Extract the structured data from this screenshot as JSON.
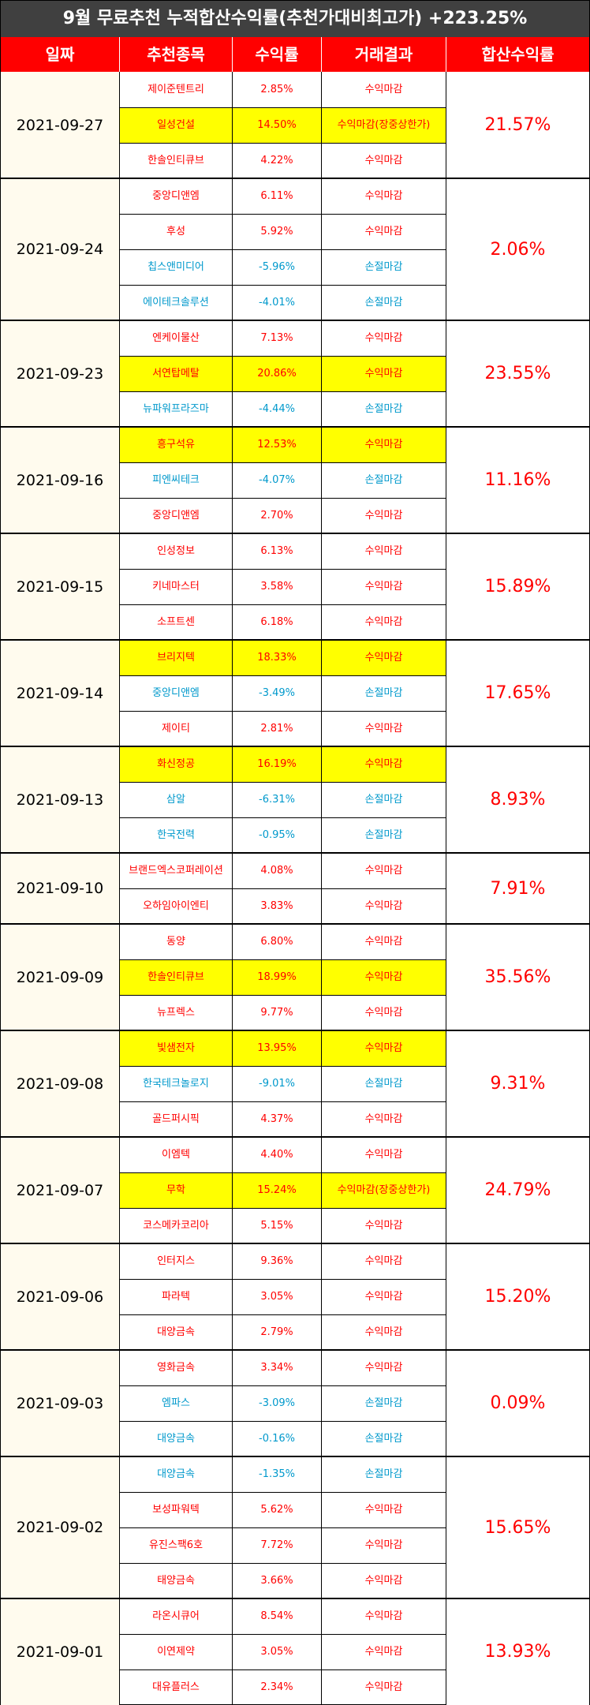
{
  "title": "9월 무료추천 누적합산수익률(추천가대비최고가) +223.25%",
  "headers": [
    "일짜",
    "추천종목",
    "수익률",
    "거래결과",
    "합산수익률"
  ],
  "colors": {
    "title_bg": "#404040",
    "header_bg": "#ff0000",
    "date_bg": "#fffbee",
    "highlight": "#ffff00",
    "gain": "#ff0000",
    "loss": "#0099cc"
  },
  "groups": [
    {
      "date": "2021-09-27",
      "total": "21.57%",
      "rows": [
        {
          "stock": "제이준텐트리",
          "return": "2.85%",
          "result": "수익마감",
          "highlight": false
        },
        {
          "stock": "일성건설",
          "return": "14.50%",
          "result": "수익마감(장중상한가)",
          "highlight": true
        },
        {
          "stock": "한솔인티큐브",
          "return": "4.22%",
          "result": "수익마감",
          "highlight": false
        }
      ]
    },
    {
      "date": "2021-09-24",
      "total": "2.06%",
      "rows": [
        {
          "stock": "중앙디앤엠",
          "return": "6.11%",
          "result": "수익마감",
          "highlight": false
        },
        {
          "stock": "후성",
          "return": "5.92%",
          "result": "수익마감",
          "highlight": false
        },
        {
          "stock": "칩스앤미디어",
          "return": "-5.96%",
          "result": "손절마감",
          "highlight": false
        },
        {
          "stock": "에이테크솔루션",
          "return": "-4.01%",
          "result": "손절마감",
          "highlight": false
        }
      ]
    },
    {
      "date": "2021-09-23",
      "total": "23.55%",
      "rows": [
        {
          "stock": "엔케이물산",
          "return": "7.13%",
          "result": "수익마감",
          "highlight": false
        },
        {
          "stock": "서연탑메탈",
          "return": "20.86%",
          "result": "수익마감",
          "highlight": true
        },
        {
          "stock": "뉴파워프라즈마",
          "return": "-4.44%",
          "result": "손절마감",
          "highlight": false
        }
      ]
    },
    {
      "date": "2021-09-16",
      "total": "11.16%",
      "rows": [
        {
          "stock": "흥구석유",
          "return": "12.53%",
          "result": "수익마감",
          "highlight": true
        },
        {
          "stock": "피엔씨테크",
          "return": "-4.07%",
          "result": "손절마감",
          "highlight": false
        },
        {
          "stock": "중앙디앤엠",
          "return": "2.70%",
          "result": "수익마감",
          "highlight": false
        }
      ]
    },
    {
      "date": "2021-09-15",
      "total": "15.89%",
      "rows": [
        {
          "stock": "인성정보",
          "return": "6.13%",
          "result": "수익마감",
          "highlight": false
        },
        {
          "stock": "키네마스터",
          "return": "3.58%",
          "result": "수익마감",
          "highlight": false
        },
        {
          "stock": "소프트센",
          "return": "6.18%",
          "result": "수익마감",
          "highlight": false
        }
      ]
    },
    {
      "date": "2021-09-14",
      "total": "17.65%",
      "rows": [
        {
          "stock": "브리지텍",
          "return": "18.33%",
          "result": "수익마감",
          "highlight": true
        },
        {
          "stock": "중앙디앤엠",
          "return": "-3.49%",
          "result": "손절마감",
          "highlight": false
        },
        {
          "stock": "제이티",
          "return": "2.81%",
          "result": "수익마감",
          "highlight": false
        }
      ]
    },
    {
      "date": "2021-09-13",
      "total": "8.93%",
      "rows": [
        {
          "stock": "화신정공",
          "return": "16.19%",
          "result": "수익마감",
          "highlight": true
        },
        {
          "stock": "삼알",
          "return": "-6.31%",
          "result": "손절마감",
          "highlight": false
        },
        {
          "stock": "한국전력",
          "return": "-0.95%",
          "result": "손절마감",
          "highlight": false
        }
      ]
    },
    {
      "date": "2021-09-10",
      "total": "7.91%",
      "rows": [
        {
          "stock": "브랜드엑스코퍼레이션",
          "return": "4.08%",
          "result": "수익마감",
          "highlight": false
        },
        {
          "stock": "오하임아이엔티",
          "return": "3.83%",
          "result": "수익마감",
          "highlight": false
        }
      ]
    },
    {
      "date": "2021-09-09",
      "total": "35.56%",
      "rows": [
        {
          "stock": "동양",
          "return": "6.80%",
          "result": "수익마감",
          "highlight": false
        },
        {
          "stock": "한솔인티큐브",
          "return": "18.99%",
          "result": "수익마감",
          "highlight": true
        },
        {
          "stock": "뉴프렉스",
          "return": "9.77%",
          "result": "수익마감",
          "highlight": false
        }
      ]
    },
    {
      "date": "2021-09-08",
      "total": "9.31%",
      "rows": [
        {
          "stock": "빛샘전자",
          "return": "13.95%",
          "result": "수익마감",
          "highlight": true
        },
        {
          "stock": "한국테크놀로지",
          "return": "-9.01%",
          "result": "손절마감",
          "highlight": false
        },
        {
          "stock": "골드퍼시픽",
          "return": "4.37%",
          "result": "수익마감",
          "highlight": false
        }
      ]
    },
    {
      "date": "2021-09-07",
      "total": "24.79%",
      "rows": [
        {
          "stock": "이엠텍",
          "return": "4.40%",
          "result": "수익마감",
          "highlight": false
        },
        {
          "stock": "무학",
          "return": "15.24%",
          "result": "수익마감(장중상한가)",
          "highlight": true
        },
        {
          "stock": "코스메카코리아",
          "return": "5.15%",
          "result": "수익마감",
          "highlight": false
        }
      ]
    },
    {
      "date": "2021-09-06",
      "total": "15.20%",
      "rows": [
        {
          "stock": "인터지스",
          "return": "9.36%",
          "result": "수익마감",
          "highlight": false
        },
        {
          "stock": "파라텍",
          "return": "3.05%",
          "result": "수익마감",
          "highlight": false
        },
        {
          "stock": "대양금속",
          "return": "2.79%",
          "result": "수익마감",
          "highlight": false
        }
      ]
    },
    {
      "date": "2021-09-03",
      "total": "0.09%",
      "rows": [
        {
          "stock": "영화금속",
          "return": "3.34%",
          "result": "수익마감",
          "highlight": false
        },
        {
          "stock": "엠파스",
          "return": "-3.09%",
          "result": "손절마감",
          "highlight": false
        },
        {
          "stock": "대양금속",
          "return": "-0.16%",
          "result": "손절마감",
          "highlight": false
        }
      ]
    },
    {
      "date": "2021-09-02",
      "total": "15.65%",
      "rows": [
        {
          "stock": "대양금속",
          "return": "-1.35%",
          "result": "손절마감",
          "highlight": false
        },
        {
          "stock": "보성파워텍",
          "return": "5.62%",
          "result": "수익마감",
          "highlight": false
        },
        {
          "stock": "유진스팩6호",
          "return": "7.72%",
          "result": "수익마감",
          "highlight": false
        },
        {
          "stock": "태양금속",
          "return": "3.66%",
          "result": "수익마감",
          "highlight": false
        }
      ]
    },
    {
      "date": "2021-09-01",
      "total": "13.93%",
      "rows": [
        {
          "stock": "라온시큐어",
          "return": "8.54%",
          "result": "수익마감",
          "highlight": false
        },
        {
          "stock": "이연제약",
          "return": "3.05%",
          "result": "수익마감",
          "highlight": false
        },
        {
          "stock": "대유플러스",
          "return": "2.34%",
          "result": "수익마감",
          "highlight": false
        }
      ]
    }
  ]
}
